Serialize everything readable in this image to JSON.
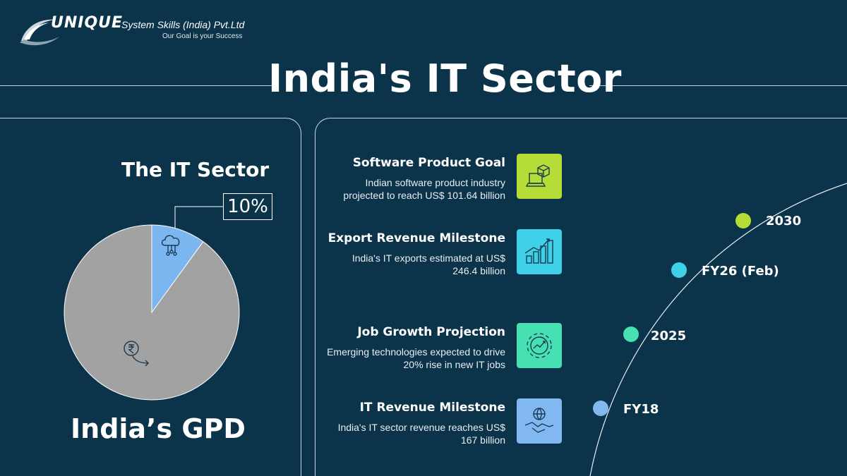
{
  "logo": {
    "brand": "UNIQUE",
    "company": "System Skills (India) Pvt.Ltd",
    "tagline": "Our Goal is your Success"
  },
  "title": "India's IT Sector",
  "pie": {
    "heading": "The IT Sector",
    "percent_label": "10%",
    "caption": "India’s GPD",
    "icons": [
      "cloud-network-icon",
      "rupee-down-icon"
    ]
  },
  "chart_data": {
    "type": "pie",
    "categories": [
      "The IT Sector",
      "India’s GPD"
    ],
    "values": [
      10,
      90
    ],
    "colors": [
      "#7cb6f0",
      "#a2a2a2"
    ],
    "title": "The IT Sector"
  },
  "milestones": [
    {
      "title": "Software Product Goal",
      "desc": "Indian software product industry projected to reach US$ 101.64 billion",
      "icon": "box-laptop-icon",
      "color": "#b6dc38"
    },
    {
      "title": "Export Revenue Milestone",
      "desc": "India's IT exports estimated at US$ 246.4 billion",
      "icon": "bar-growth-icon",
      "color": "#3fd1e8"
    },
    {
      "title": "Job Growth Projection",
      "desc": "Emerging technologies expected to drive 20% rise in new IT jobs",
      "icon": "gear-trend-icon",
      "color": "#46e0b2"
    },
    {
      "title": "IT Revenue Milestone",
      "desc": "India's IT sector revenue reaches US$ 167 billion",
      "icon": "handshake-globe-icon",
      "color": "#82b8f2"
    }
  ],
  "timeline": [
    {
      "label": "2030",
      "color": "#b6dc38"
    },
    {
      "label": "FY26 (Feb)",
      "color": "#3fd1e8"
    },
    {
      "label": "2025",
      "color": "#46e0b2"
    },
    {
      "label": "FY18",
      "color": "#82b8f2"
    }
  ]
}
